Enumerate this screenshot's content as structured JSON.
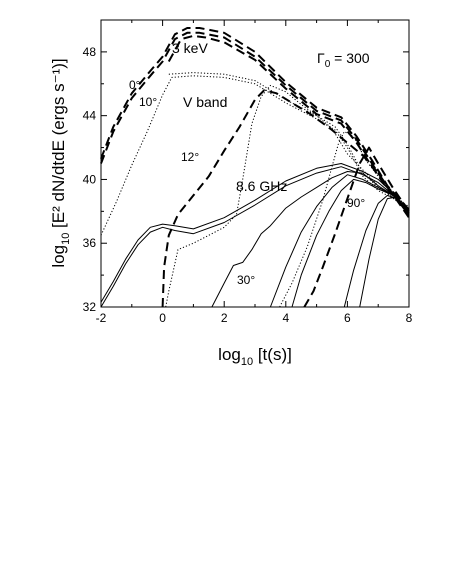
{
  "chart_data": {
    "type": "line",
    "xlim": [
      -2,
      8
    ],
    "ylim": [
      32,
      50
    ],
    "x_ticks": [
      "-2",
      "0",
      "2",
      "4",
      "6",
      "8"
    ],
    "y_ticks": [
      "32",
      "36",
      "40",
      "44",
      "48"
    ],
    "xlabel": {
      "base": "log",
      "sub": "10",
      "rest": " [t(s)]"
    },
    "ylabel": {
      "base": "log",
      "sub": "10",
      "rest": " [E² dN/dtdE (ergs s⁻¹)]"
    },
    "annotation_gamma": {
      "symbol": "Γ",
      "sub": "0",
      "rest": " = 300"
    },
    "band_labels": {
      "x_ray": "3 keV",
      "optical": "V band",
      "radio": "8.6 GHz"
    },
    "angle_labels": [
      "0°",
      "10°",
      "12°",
      "30°",
      "90°"
    ],
    "grid": false,
    "legend": "none",
    "series": [
      {
        "style": "dashed",
        "points": [
          [
            -2.0,
            41.0
          ],
          [
            -1.6,
            43.0
          ],
          [
            -1.0,
            45.1
          ],
          [
            -0.4,
            46.5
          ],
          [
            0.0,
            47.4
          ],
          [
            0.4,
            48.8
          ],
          [
            0.8,
            49.2
          ],
          [
            1.2,
            49.2
          ],
          [
            2.0,
            48.9
          ],
          [
            3.0,
            47.7
          ],
          [
            4.0,
            45.9
          ],
          [
            5.0,
            44.3
          ],
          [
            5.8,
            43.7
          ],
          [
            6.3,
            42.5
          ],
          [
            6.8,
            41.0
          ],
          [
            7.3,
            39.5
          ],
          [
            8.0,
            38.0
          ]
        ]
      },
      {
        "style": "dashed",
        "points": [
          [
            -2.0,
            41.3
          ],
          [
            -1.6,
            43.3
          ],
          [
            -1.0,
            45.4
          ],
          [
            -0.4,
            46.8
          ],
          [
            0.0,
            47.7
          ],
          [
            0.4,
            49.1
          ],
          [
            0.8,
            49.5
          ],
          [
            1.2,
            49.5
          ],
          [
            2.0,
            49.2
          ],
          [
            3.0,
            48.0
          ],
          [
            4.0,
            46.1
          ],
          [
            5.0,
            44.5
          ],
          [
            5.8,
            43.9
          ],
          [
            6.3,
            42.7
          ],
          [
            6.8,
            41.2
          ],
          [
            7.3,
            39.6
          ],
          [
            8.0,
            38.1
          ]
        ]
      },
      {
        "style": "dashed",
        "points": [
          [
            0.2,
            47.4
          ],
          [
            0.6,
            48.8
          ],
          [
            1.0,
            49.0
          ],
          [
            1.4,
            48.9
          ],
          [
            2.0,
            48.6
          ],
          [
            3.0,
            47.5
          ],
          [
            4.0,
            45.7
          ],
          [
            5.0,
            44.1
          ],
          [
            5.8,
            43.5
          ],
          [
            6.3,
            42.3
          ],
          [
            6.8,
            40.8
          ],
          [
            7.3,
            39.4
          ],
          [
            8.0,
            37.9
          ]
        ]
      },
      {
        "style": "dotted",
        "points": [
          [
            -2.0,
            36.5
          ],
          [
            -1.5,
            38.6
          ],
          [
            -1.0,
            40.9
          ],
          [
            -0.5,
            43.0
          ],
          [
            0.0,
            45.3
          ],
          [
            0.3,
            46.4
          ],
          [
            1.0,
            46.5
          ],
          [
            2.0,
            46.4
          ],
          [
            3.0,
            46.0
          ],
          [
            4.0,
            44.8
          ],
          [
            5.0,
            43.8
          ],
          [
            5.6,
            43.1
          ],
          [
            6.0,
            42.0
          ],
          [
            6.5,
            40.2
          ],
          [
            7.0,
            39.3
          ],
          [
            7.5,
            38.8
          ],
          [
            8.0,
            38.2
          ]
        ]
      },
      {
        "style": "dotted",
        "points": [
          [
            0.2,
            46.6
          ],
          [
            1.0,
            46.7
          ],
          [
            2.0,
            46.6
          ],
          [
            3.0,
            46.2
          ],
          [
            4.0,
            45.0
          ],
          [
            5.0,
            44.0
          ],
          [
            5.6,
            43.3
          ],
          [
            6.0,
            42.2
          ],
          [
            6.5,
            40.4
          ],
          [
            7.0,
            39.5
          ],
          [
            8.0,
            38.3
          ]
        ]
      },
      {
        "style": "dashed",
        "points": [
          [
            0.0,
            32.0
          ],
          [
            0.05,
            34.5
          ],
          [
            0.2,
            36.5
          ],
          [
            0.5,
            37.8
          ],
          [
            1.0,
            39.0
          ],
          [
            1.5,
            40.2
          ],
          [
            2.0,
            41.8
          ],
          [
            2.5,
            43.3
          ],
          [
            3.0,
            45.0
          ],
          [
            3.3,
            45.6
          ],
          [
            3.7,
            45.4
          ],
          [
            4.2,
            44.8
          ],
          [
            4.8,
            44.1
          ],
          [
            5.5,
            43.1
          ],
          [
            6.0,
            42.3
          ],
          [
            6.5,
            41.5
          ],
          [
            7.0,
            40.4
          ],
          [
            7.5,
            39.0
          ],
          [
            8.0,
            37.6
          ]
        ]
      },
      {
        "style": "dotted",
        "points": [
          [
            0.1,
            32.0
          ],
          [
            0.2,
            33.0
          ],
          [
            0.5,
            35.6
          ],
          [
            1.0,
            36.0
          ],
          [
            1.5,
            36.5
          ],
          [
            2.0,
            37.0
          ],
          [
            2.4,
            37.8
          ],
          [
            2.6,
            40.0
          ],
          [
            2.9,
            43.5
          ],
          [
            3.2,
            45.2
          ],
          [
            3.5,
            45.9
          ],
          [
            4.0,
            45.5
          ],
          [
            4.5,
            44.7
          ],
          [
            5.0,
            44.0
          ],
          [
            5.5,
            43.2
          ],
          [
            6.0,
            41.6
          ],
          [
            6.5,
            40.6
          ],
          [
            7.0,
            39.6
          ],
          [
            8.0,
            38.0
          ]
        ]
      },
      {
        "style": "dotted",
        "points": [
          [
            3.8,
            32.0
          ],
          [
            4.2,
            33.5
          ],
          [
            4.7,
            35.8
          ],
          [
            5.2,
            38.7
          ],
          [
            5.5,
            40.8
          ],
          [
            5.7,
            42.2
          ],
          [
            5.9,
            43.0
          ],
          [
            6.2,
            42.7
          ],
          [
            6.6,
            41.2
          ],
          [
            7.0,
            40.2
          ],
          [
            7.5,
            39.2
          ],
          [
            8.0,
            38.1
          ]
        ]
      },
      {
        "style": "dashed",
        "points": [
          [
            4.6,
            32.0
          ],
          [
            4.9,
            33.0
          ],
          [
            5.2,
            34.5
          ],
          [
            5.6,
            36.6
          ],
          [
            6.0,
            38.8
          ],
          [
            6.4,
            41.0
          ],
          [
            6.7,
            42.0
          ],
          [
            7.0,
            41.0
          ],
          [
            7.5,
            39.4
          ],
          [
            8.0,
            38.0
          ]
        ]
      },
      {
        "style": "solid",
        "points": [
          [
            -2.0,
            32.0
          ],
          [
            -1.6,
            33.3
          ],
          [
            -1.2,
            34.7
          ],
          [
            -0.8,
            35.9
          ],
          [
            -0.4,
            36.7
          ],
          [
            0.0,
            37.0
          ],
          [
            0.4,
            36.8
          ],
          [
            1.0,
            36.6
          ],
          [
            2.0,
            37.3
          ],
          [
            3.0,
            38.4
          ],
          [
            4.0,
            39.6
          ],
          [
            5.0,
            40.4
          ],
          [
            5.8,
            40.8
          ],
          [
            6.5,
            40.3
          ],
          [
            7.0,
            39.8
          ],
          [
            7.5,
            39.0
          ],
          [
            8.0,
            37.7
          ]
        ]
      },
      {
        "style": "solid",
        "points": [
          [
            -2.0,
            32.3
          ],
          [
            -1.6,
            33.6
          ],
          [
            -1.2,
            35.0
          ],
          [
            -0.8,
            36.2
          ],
          [
            -0.4,
            37.0
          ],
          [
            0.0,
            37.2
          ],
          [
            0.4,
            37.1
          ],
          [
            1.0,
            36.9
          ],
          [
            2.0,
            37.6
          ],
          [
            3.0,
            38.7
          ],
          [
            4.0,
            39.9
          ],
          [
            5.0,
            40.7
          ],
          [
            5.8,
            41.0
          ],
          [
            6.5,
            40.5
          ],
          [
            7.0,
            40.0
          ],
          [
            7.5,
            39.1
          ],
          [
            8.0,
            37.8
          ]
        ]
      },
      {
        "style": "solid",
        "points": [
          [
            1.6,
            32.0
          ],
          [
            2.0,
            33.5
          ],
          [
            2.3,
            34.6
          ],
          [
            2.6,
            34.8
          ],
          [
            2.9,
            35.6
          ],
          [
            3.2,
            36.6
          ],
          [
            3.5,
            37.1
          ],
          [
            4.0,
            38.2
          ],
          [
            4.5,
            38.9
          ],
          [
            5.0,
            39.5
          ],
          [
            5.5,
            40.1
          ],
          [
            6.0,
            40.5
          ],
          [
            6.5,
            40.4
          ],
          [
            7.0,
            39.6
          ],
          [
            7.5,
            39.0
          ],
          [
            8.0,
            37.8
          ]
        ]
      },
      {
        "style": "solid",
        "points": [
          [
            3.5,
            32.0
          ],
          [
            4.0,
            34.5
          ],
          [
            4.5,
            36.7
          ],
          [
            5.0,
            38.3
          ],
          [
            5.5,
            39.5
          ],
          [
            6.0,
            40.3
          ],
          [
            6.5,
            40.0
          ],
          [
            7.0,
            39.5
          ],
          [
            7.5,
            39.0
          ],
          [
            8.0,
            37.8
          ]
        ]
      },
      {
        "style": "solid",
        "points": [
          [
            4.2,
            32.0
          ],
          [
            4.5,
            34.0
          ],
          [
            5.0,
            36.5
          ],
          [
            5.4,
            38.0
          ],
          [
            5.8,
            39.3
          ],
          [
            6.2,
            40.0
          ],
          [
            6.6,
            39.8
          ],
          [
            7.0,
            39.4
          ],
          [
            7.5,
            39.0
          ],
          [
            8.0,
            37.8
          ]
        ]
      },
      {
        "style": "solid",
        "points": [
          [
            5.9,
            32.0
          ],
          [
            6.2,
            34.3
          ],
          [
            6.6,
            36.8
          ],
          [
            7.0,
            38.5
          ],
          [
            7.3,
            39.0
          ],
          [
            7.6,
            38.8
          ],
          [
            8.0,
            37.9
          ]
        ]
      },
      {
        "style": "solid",
        "points": [
          [
            6.4,
            32.0
          ],
          [
            6.7,
            35.0
          ],
          [
            7.0,
            37.5
          ],
          [
            7.3,
            38.8
          ],
          [
            7.6,
            38.9
          ],
          [
            8.0,
            37.9
          ]
        ]
      }
    ]
  }
}
